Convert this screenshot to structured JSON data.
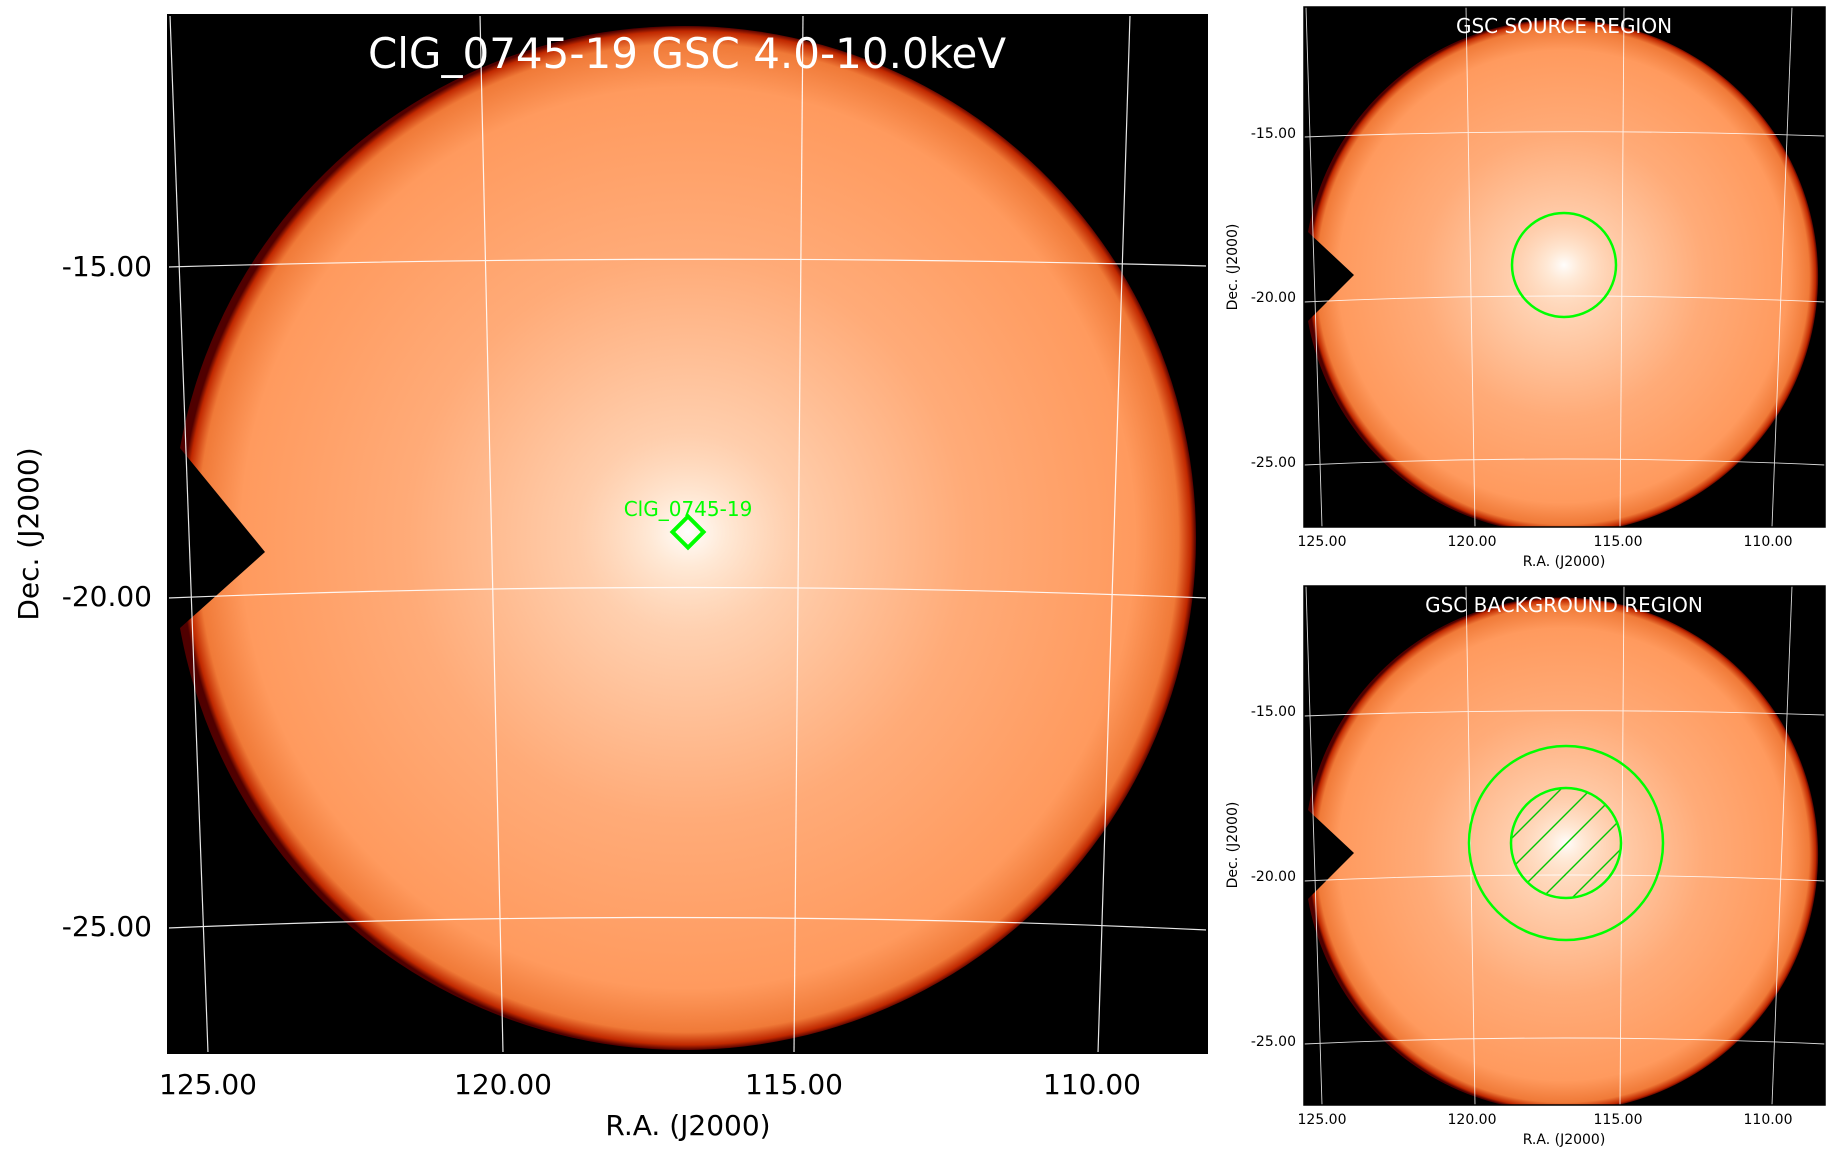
{
  "colors": {
    "background": "#000000",
    "disk_fill": "#ffa06a",
    "disk_center": "#fff1e4",
    "disk_edge": "#e06020",
    "rim": "#d02000",
    "grid": "#ffffff",
    "region": "#00ff00",
    "title_text": "#ffffff",
    "axis_text": "#000000"
  },
  "main_panel": {
    "title": "ClG_0745-19 GSC 4.0-10.0keV",
    "source_label": "ClG_0745-19",
    "source_marker": "diamond",
    "xlabel": "R.A. (J2000)",
    "ylabel": "Dec. (J2000)",
    "x_ticks": [
      "125.00",
      "120.00",
      "115.00",
      "110.00"
    ],
    "y_ticks": [
      "-15.00",
      "-20.00",
      "-25.00"
    ]
  },
  "source_panel": {
    "title": "GSC SOURCE REGION",
    "xlabel": "R.A. (J2000)",
    "ylabel": "Dec. (J2000)",
    "x_ticks": [
      "125.00",
      "120.00",
      "115.00",
      "110.00"
    ],
    "y_ticks": [
      "-15.00",
      "-20.00",
      "-25.00"
    ]
  },
  "background_panel": {
    "title": "GSC BACKGROUND REGION",
    "xlabel": "R.A. (J2000)",
    "ylabel": "Dec. (J2000)",
    "x_ticks": [
      "125.00",
      "120.00",
      "115.00",
      "110.00"
    ],
    "y_ticks": [
      "-15.00",
      "-20.00",
      "-25.00"
    ]
  }
}
